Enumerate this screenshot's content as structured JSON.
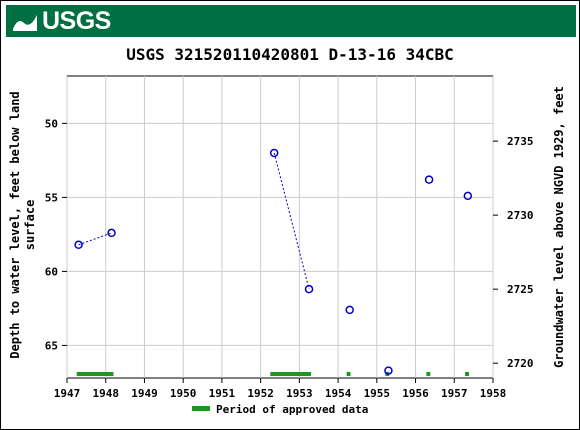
{
  "header": {
    "logo_text": "USGS"
  },
  "chart_data": {
    "type": "scatter",
    "title": "USGS 321520110420801 D-13-16 34CBC",
    "ylabel_left": "Depth to water level, feet below land surface",
    "ylabel_right": "Groundwater level above NGVD 1929, feet",
    "xlabel": "",
    "xlim": [
      1947,
      1958
    ],
    "ylim_left": [
      67.2,
      46.8
    ],
    "ylim_right": [
      2719.0,
      2739.4
    ],
    "x_ticks": [
      "1947",
      "1948",
      "1949",
      "1950",
      "1951",
      "1952",
      "1953",
      "1954",
      "1955",
      "1956",
      "1957",
      "1958"
    ],
    "y_ticks_left": [
      "50",
      "55",
      "60",
      "65"
    ],
    "y_ticks_right": [
      "2720",
      "2725",
      "2730",
      "2735"
    ],
    "grid": true,
    "series": [
      {
        "name": "",
        "points": [
          {
            "x": 1947.3,
            "y": 58.2
          },
          {
            "x": 1948.15,
            "y": 57.4
          },
          {
            "x": 1952.35,
            "y": 52.0
          },
          {
            "x": 1953.25,
            "y": 61.2
          },
          {
            "x": 1954.3,
            "y": 62.6
          },
          {
            "x": 1955.3,
            "y": 66.7
          },
          {
            "x": 1956.35,
            "y": 53.8
          },
          {
            "x": 1957.35,
            "y": 54.9
          }
        ],
        "connected_segments": [
          [
            0,
            1
          ],
          [
            2,
            3
          ]
        ],
        "color": "#0000cc"
      }
    ],
    "approved_periods": [
      {
        "start": 1947.25,
        "end": 1948.2
      },
      {
        "start": 1952.25,
        "end": 1953.3
      },
      {
        "start": 1954.22,
        "end": 1954.32
      },
      {
        "start": 1955.22,
        "end": 1955.32
      },
      {
        "start": 1956.28,
        "end": 1956.38
      },
      {
        "start": 1957.28,
        "end": 1957.38
      }
    ],
    "legend": {
      "label": "Period of approved data",
      "color": "#1a9a1a",
      "placement": "bottom"
    }
  }
}
